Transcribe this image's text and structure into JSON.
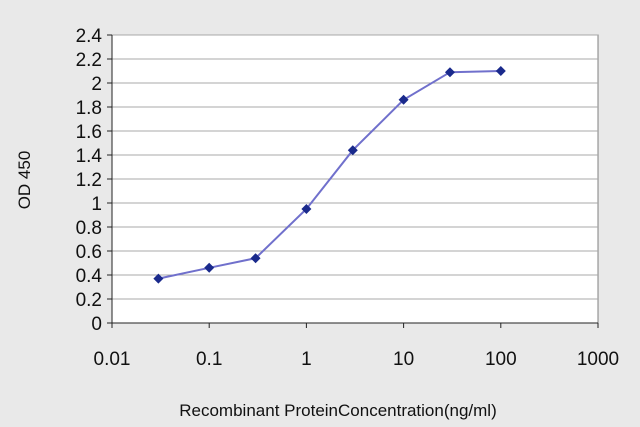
{
  "chart_data": {
    "type": "line",
    "xlabel": "Recombinant ProteinConcentration(ng/ml)",
    "ylabel": "OD 450",
    "xscale": "log",
    "xlim": [
      0.01,
      1000
    ],
    "ylim": [
      0,
      2.4
    ],
    "grid": "horizontal",
    "legend": "none",
    "x_ticks": [
      0.01,
      0.1,
      1,
      10,
      100,
      1000
    ],
    "x_tick_labels": [
      "0.01",
      "0.1",
      "1",
      "10",
      "100",
      "1000"
    ],
    "y_ticks": [
      0,
      0.2,
      0.4,
      0.6,
      0.8,
      1,
      1.2,
      1.4,
      1.6,
      1.8,
      2,
      2.2,
      2.4
    ],
    "y_tick_labels": [
      "0",
      "0.2",
      "0.4",
      "0.6",
      "0.8",
      "1",
      "1.2",
      "1.4",
      "1.6",
      "1.8",
      "2",
      "2.2",
      "2.4"
    ],
    "series": [
      {
        "x": [
          0.03,
          0.1,
          0.3,
          1,
          3,
          10,
          30,
          100
        ],
        "y": [
          0.37,
          0.46,
          0.54,
          0.95,
          1.44,
          1.86,
          2.09,
          2.1
        ]
      }
    ],
    "colors": {
      "line": "#7070cc",
      "marker": "#1a2a8c",
      "plot_background": "#ffffff",
      "grid": "#a8a8a8"
    }
  }
}
